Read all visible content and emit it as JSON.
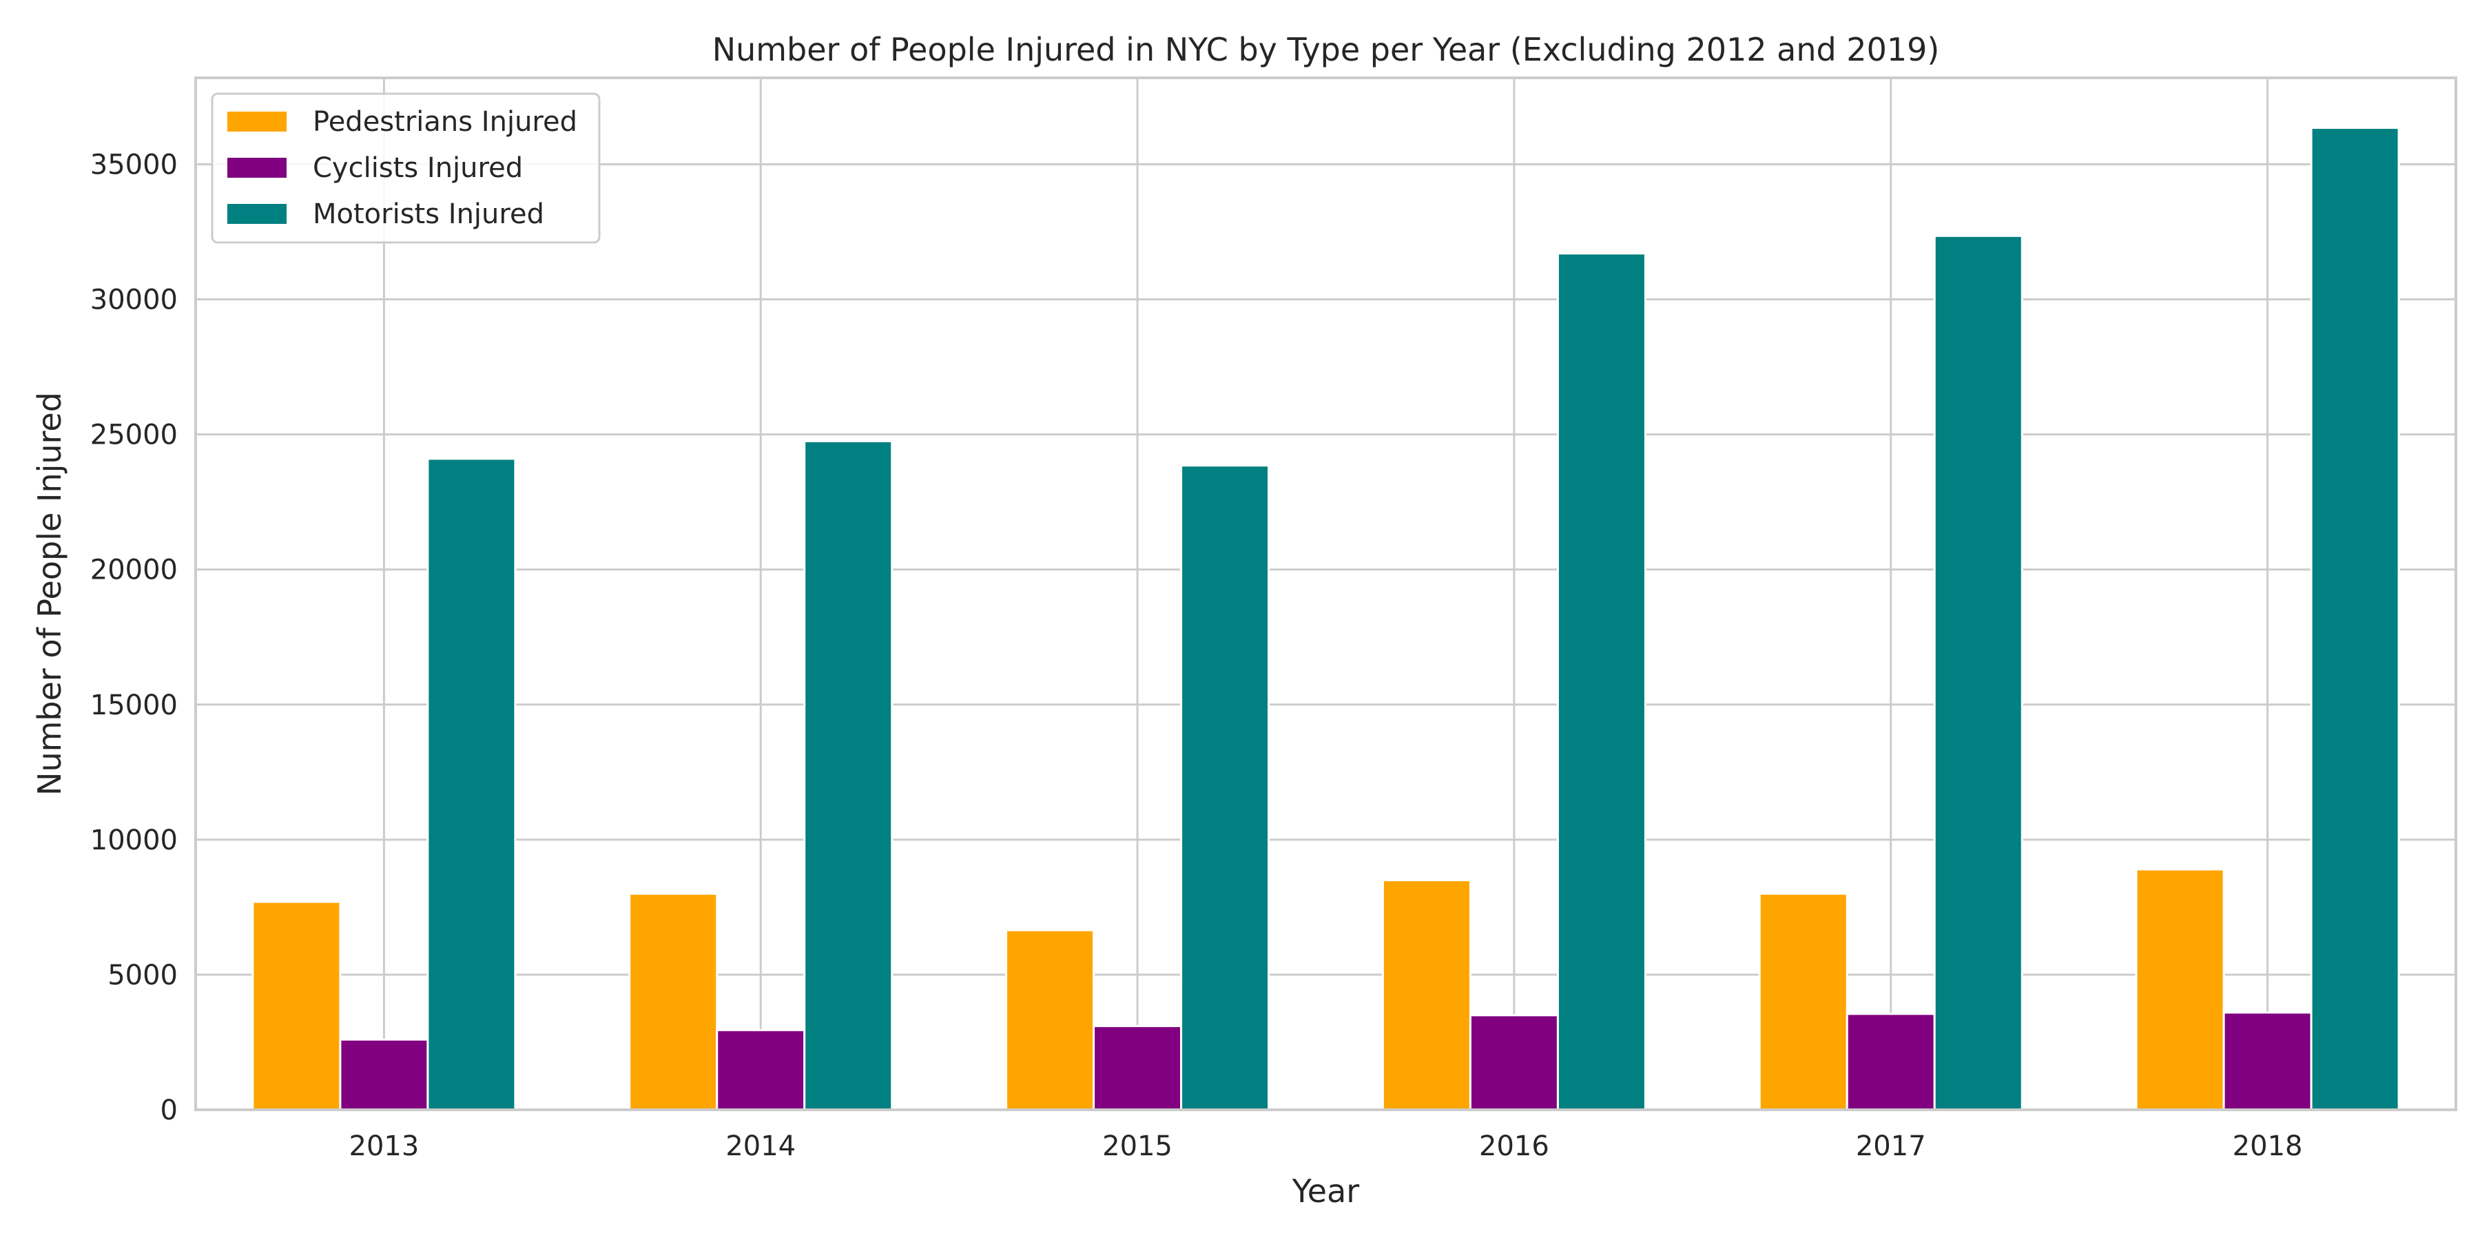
{
  "chart_data": {
    "type": "bar",
    "title": "Number of People Injured in NYC by Type per Year (Excluding 2012 and 2019)",
    "xlabel": "Year",
    "ylabel": "Number of People Injured",
    "categories": [
      "2013",
      "2014",
      "2015",
      "2016",
      "2017",
      "2018"
    ],
    "ylim": [
      0,
      38200
    ],
    "yticks": [
      0,
      5000,
      10000,
      15000,
      20000,
      25000,
      30000,
      35000
    ],
    "grid": true,
    "legend_position": "top-left",
    "series": [
      {
        "name": "Pedestrians Injured",
        "color": "#FFA500",
        "values": [
          7700,
          8000,
          6650,
          8500,
          8000,
          8900
        ]
      },
      {
        "name": "Cyclists Injured",
        "color": "#800080",
        "values": [
          2600,
          2950,
          3100,
          3500,
          3550,
          3600
        ]
      },
      {
        "name": "Motorists Injured",
        "color": "#008080",
        "values": [
          24100,
          24750,
          23850,
          31700,
          32350,
          36350
        ]
      }
    ]
  }
}
